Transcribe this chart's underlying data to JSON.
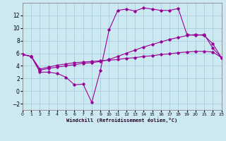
{
  "xlabel": "Windchill (Refroidissement éolien,°C)",
  "xlim": [
    0,
    23
  ],
  "ylim": [
    -3,
    14
  ],
  "xticks": [
    0,
    1,
    2,
    3,
    4,
    5,
    6,
    7,
    8,
    9,
    10,
    11,
    12,
    13,
    14,
    15,
    16,
    17,
    18,
    19,
    20,
    21,
    22,
    23
  ],
  "yticks": [
    -2,
    0,
    2,
    4,
    6,
    8,
    10,
    12
  ],
  "bg_color": "#cce8f0",
  "grid_color": "#aaccdd",
  "line_color": "#990099",
  "line1_x": [
    0,
    1,
    2,
    3,
    4,
    5,
    6,
    7,
    8,
    9,
    10,
    11,
    12,
    13,
    14,
    15,
    16,
    17,
    18,
    19,
    20,
    21,
    22,
    23
  ],
  "line1_y": [
    5.8,
    5.5,
    3.0,
    3.0,
    2.8,
    2.2,
    1.0,
    1.1,
    -1.8,
    3.3,
    9.7,
    12.8,
    13.0,
    12.7,
    13.2,
    13.0,
    12.8,
    12.8,
    13.1,
    9.0,
    8.8,
    9.0,
    6.8,
    5.3
  ],
  "line2_x": [
    0,
    1,
    2,
    3,
    4,
    5,
    6,
    7,
    8,
    9,
    10,
    11,
    12,
    13,
    14,
    15,
    16,
    17,
    18,
    19,
    20,
    21,
    22,
    23
  ],
  "line2_y": [
    5.8,
    5.5,
    3.3,
    3.6,
    3.8,
    4.0,
    4.2,
    4.4,
    4.5,
    4.7,
    5.0,
    5.5,
    6.0,
    6.5,
    7.0,
    7.4,
    7.8,
    8.2,
    8.5,
    8.8,
    9.0,
    8.8,
    7.5,
    5.3
  ],
  "line3_x": [
    0,
    1,
    2,
    3,
    4,
    5,
    6,
    7,
    8,
    9,
    10,
    11,
    12,
    13,
    14,
    15,
    16,
    17,
    18,
    19,
    20,
    21,
    22,
    23
  ],
  "line3_y": [
    5.8,
    5.5,
    3.5,
    3.8,
    4.1,
    4.3,
    4.5,
    4.6,
    4.7,
    4.8,
    4.9,
    5.0,
    5.2,
    5.3,
    5.5,
    5.6,
    5.8,
    5.9,
    6.1,
    6.2,
    6.3,
    6.3,
    6.2,
    5.3
  ]
}
